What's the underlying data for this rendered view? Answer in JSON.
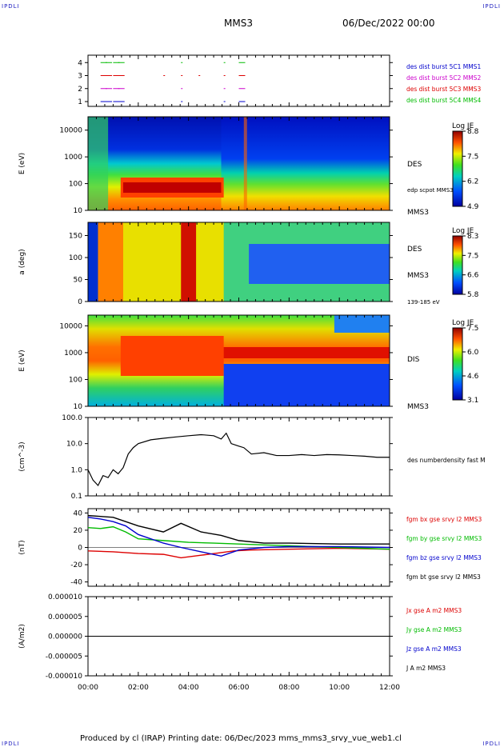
{
  "corner_labels": {
    "top_left": "IPDLI",
    "top_right": "IPDLI",
    "bottom_left": "IPDLI",
    "bottom_right": "IPDLI"
  },
  "header": {
    "spacecraft": "MMS3",
    "date": "06/Dec/2022 00:00"
  },
  "footer": {
    "text": "Produced by cl (IRAP)   Printing date: 06/Dec/2023   mms_mms3_srvy_vue_web1.cl"
  },
  "colors": {
    "blue": "#0000cc",
    "magenta": "#cc00cc",
    "red": "#dd0000",
    "green": "#00bb00",
    "black": "#000000"
  },
  "chart_data": [
    {
      "type": "scatter",
      "id": "burst-intervals",
      "yticks": [
        "1",
        "2",
        "3",
        "4"
      ],
      "series": [
        {
          "name": "des dist burst 5C1 MMS1",
          "color": "#0000cc",
          "level": 1,
          "x_hours": [
            0.5,
            0.7,
            1.0,
            1.2,
            3.7,
            5.4,
            6.0
          ]
        },
        {
          "name": "des dist burst 5C2 MMS2",
          "color": "#cc00cc",
          "level": 2,
          "x_hours": [
            0.5,
            0.7,
            1.0,
            1.2,
            3.7,
            5.4,
            6.0
          ]
        },
        {
          "name": "des dist burst 5C3 MMS3",
          "color": "#dd0000",
          "level": 3,
          "x_hours": [
            0.5,
            0.7,
            1.0,
            1.2,
            3.0,
            3.7,
            4.4,
            5.4,
            6.0
          ]
        },
        {
          "name": "des dist burst 5C4 MMS4",
          "color": "#00bb00",
          "level": 4,
          "x_hours": [
            0.5,
            0.7,
            1.0,
            1.2,
            3.7,
            5.4,
            6.0
          ]
        }
      ]
    },
    {
      "type": "heatmap",
      "id": "des-energy",
      "ylabel": "E (eV)",
      "yticks": [
        "10",
        "100",
        "1000",
        "10000"
      ],
      "right_labels": [
        "DES",
        "edp scpot MMS3",
        "MMS3"
      ],
      "colorbar": {
        "title": "Log JE",
        "ticks": [
          "8.8",
          "7.5",
          "6.2",
          "4.9"
        ]
      }
    },
    {
      "type": "heatmap",
      "id": "des-pitch",
      "ylabel": "a (deg)",
      "yticks": [
        "0",
        "50",
        "100",
        "150"
      ],
      "right_labels": [
        "DES",
        "MMS3",
        "139-185 eV"
      ],
      "colorbar": {
        "title": "Log JE",
        "ticks": [
          "8.3",
          "7.5",
          "6.6",
          "5.8"
        ]
      }
    },
    {
      "type": "heatmap",
      "id": "dis-energy",
      "ylabel": "E (eV)",
      "yticks": [
        "10",
        "100",
        "1000",
        "10000"
      ],
      "right_labels": [
        "DIS",
        "MMS3"
      ],
      "colorbar": {
        "title": "Log JE",
        "ticks": [
          "7.5",
          "6.0",
          "4.6",
          "3.1"
        ]
      }
    },
    {
      "type": "line",
      "id": "density",
      "ylabel": "(cm^-3)",
      "yscale": "log",
      "ylim": [
        0.1,
        100
      ],
      "yticks": [
        "0.1",
        "1.0",
        "10.0",
        "100.0"
      ],
      "series": [
        {
          "name": "des numberdensity fast M",
          "color": "#000000",
          "x": [
            0.0,
            0.2,
            0.4,
            0.6,
            0.8,
            1.0,
            1.2,
            1.4,
            1.6,
            1.8,
            2.0,
            2.5,
            3.0,
            3.5,
            4.0,
            4.5,
            5.0,
            5.3,
            5.5,
            5.7,
            6.0,
            6.2,
            6.5,
            7.0,
            7.5,
            8.0,
            8.5,
            9.0,
            9.5,
            10.0,
            10.5,
            11.0,
            11.5,
            12.0
          ],
          "y": [
            1.0,
            0.4,
            0.25,
            0.6,
            0.5,
            1.0,
            0.7,
            1.2,
            4.0,
            7.0,
            10.0,
            14.0,
            16.0,
            18.0,
            20.0,
            22.0,
            20.0,
            15.0,
            25.0,
            10.0,
            8.0,
            7.0,
            4.0,
            4.5,
            3.5,
            3.5,
            3.8,
            3.5,
            3.8,
            3.7,
            3.5,
            3.3,
            3.0,
            3.0
          ]
        }
      ]
    },
    {
      "type": "line",
      "id": "magnetic-field",
      "ylabel": "(nT)",
      "ylim": [
        -45,
        45
      ],
      "yticks": [
        "-40",
        "-20",
        "0",
        "20",
        "40"
      ],
      "series": [
        {
          "name": "fgm bx gse srvy l2 MMS3",
          "color": "#dd0000",
          "x": [
            0,
            1,
            2,
            3,
            3.7,
            4.5,
            5.3,
            5.8,
            6.5,
            8,
            10,
            12
          ],
          "y": [
            -4,
            -5,
            -7,
            -8,
            -12,
            -9,
            -6,
            -4,
            -3,
            -2,
            -1,
            -2
          ]
        },
        {
          "name": "fgm by gse srvy l2 MMS3",
          "color": "#00bb00",
          "x": [
            0,
            0.5,
            1,
            1.5,
            2,
            3,
            4,
            5,
            6,
            7,
            8,
            10,
            12
          ],
          "y": [
            23,
            22,
            24,
            18,
            10,
            8,
            6,
            5,
            4,
            3,
            2,
            0,
            -2
          ]
        },
        {
          "name": "fgm bz gse srvy l2 MMS3",
          "color": "#0000cc",
          "x": [
            0,
            0.5,
            1,
            1.5,
            2,
            3,
            3.7,
            4.5,
            5.3,
            6,
            7,
            8,
            10,
            12
          ],
          "y": [
            35,
            33,
            30,
            25,
            15,
            5,
            0,
            -5,
            -10,
            -3,
            0,
            1,
            1,
            0
          ]
        },
        {
          "name": "fgm bt gse srvy l2 MMS3",
          "color": "#000000",
          "x": [
            0,
            0.5,
            1,
            1.5,
            2,
            3,
            3.7,
            4.5,
            5.3,
            6,
            7,
            8,
            10,
            12
          ],
          "y": [
            37,
            36,
            35,
            30,
            25,
            18,
            28,
            18,
            14,
            8,
            5,
            5,
            4,
            4
          ]
        }
      ]
    },
    {
      "type": "line",
      "id": "current-density",
      "ylabel": "(A/m2)",
      "ylim": [
        -1e-05,
        1e-05
      ],
      "yticks": [
        "-0.000010",
        "-0.000005",
        "0.000000",
        "0.000005",
        "0.000010"
      ],
      "series": [
        {
          "name": "Jx gse A m2 MMS3",
          "color": "#dd0000",
          "x": [
            0,
            12
          ],
          "y": [
            0,
            0
          ]
        },
        {
          "name": "Jy gse A m2 MMS3",
          "color": "#00bb00",
          "x": [
            0,
            12
          ],
          "y": [
            0,
            0
          ]
        },
        {
          "name": "Jz gse A m2 MMS3",
          "color": "#0000cc",
          "x": [
            0,
            12
          ],
          "y": [
            0,
            0
          ]
        },
        {
          "name": "J A m2 MMS3",
          "color": "#000000",
          "x": [
            0,
            12
          ],
          "y": [
            0,
            0
          ]
        }
      ]
    }
  ],
  "xaxis": {
    "ticks": [
      "00:00",
      "02:00",
      "04:00",
      "06:00",
      "08:00",
      "10:00",
      "12:00"
    ],
    "range_hours": [
      0,
      12
    ]
  }
}
